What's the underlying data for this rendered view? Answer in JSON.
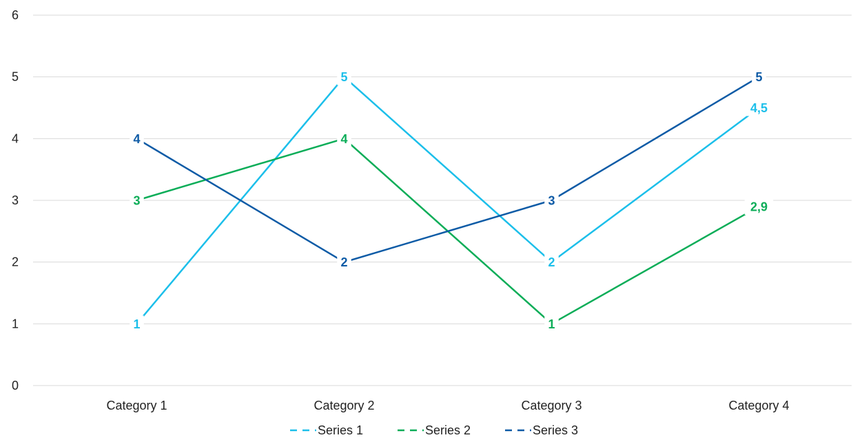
{
  "chart_data": {
    "type": "line",
    "categories": [
      "Category 1",
      "Category 2",
      "Category 3",
      "Category 4"
    ],
    "series": [
      {
        "name": "Series 1",
        "color": "#1CBFEA",
        "values": [
          1,
          5,
          2,
          4.5
        ],
        "labels": [
          "1",
          "5",
          "2",
          "4,5"
        ]
      },
      {
        "name": "Series 2",
        "color": "#0BAD58",
        "values": [
          3,
          4,
          1,
          2.9
        ],
        "labels": [
          "3",
          "4",
          "1",
          "2,9"
        ]
      },
      {
        "name": "Series 3",
        "color": "#0D5BA6",
        "values": [
          4,
          2,
          3,
          5
        ],
        "labels": [
          "4",
          "2",
          "3",
          "5"
        ]
      }
    ],
    "yticks": [
      "0",
      "1",
      "2",
      "3",
      "4",
      "5",
      "6"
    ],
    "ylim": [
      0,
      6
    ],
    "grid": true,
    "legend_position": "bottom"
  }
}
